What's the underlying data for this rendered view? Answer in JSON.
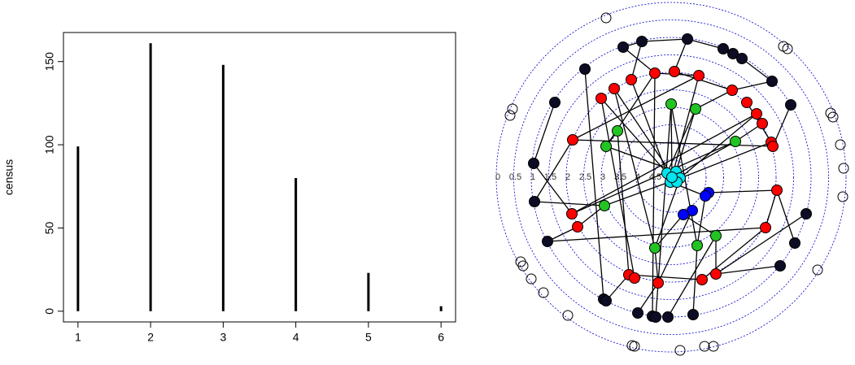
{
  "chart_data": [
    {
      "type": "bar",
      "y_label": "census",
      "x": [
        1,
        2,
        3,
        4,
        5,
        6
      ],
      "values": [
        99,
        161,
        148,
        80,
        23,
        3
      ],
      "color": "#000000",
      "xlim": [
        0.8,
        6.2
      ],
      "xticks": [
        1,
        2,
        3,
        4,
        5,
        6
      ],
      "ylim": [
        -6.44,
        167.44
      ],
      "yticks": [
        0,
        50,
        100,
        150
      ]
    },
    {
      "type": "network",
      "xlim": [
        -2.15,
        2.15
      ],
      "ylim": [
        -2.15,
        2.15
      ],
      "rlim": [
        5,
        0
      ],
      "rticks": [
        0,
        0.5,
        1,
        1.5,
        2,
        2.5,
        3,
        3.5,
        4,
        4.5
      ],
      "ring_color": "#0000cc",
      "groups": [
        {
          "color": "none"
        },
        {
          "color": "#0c0c24"
        },
        {
          "color": "#ff0000"
        },
        {
          "color": "#22c422"
        },
        {
          "color": "#0000ff"
        },
        {
          "color": "#00e5ee"
        }
      ],
      "nodes": [
        {
          "x": -0.8,
          "y": 1.96,
          "group": 0
        },
        {
          "x": 1.38,
          "y": 1.61,
          "group": 0
        },
        {
          "x": 1.43,
          "y": 1.58,
          "group": 0
        },
        {
          "x": -1.95,
          "y": 0.84,
          "group": 0
        },
        {
          "x": -1.98,
          "y": 0.76,
          "group": 0
        },
        {
          "x": 1.96,
          "y": 0.79,
          "group": 0
        },
        {
          "x": 1.99,
          "y": 0.74,
          "group": 0
        },
        {
          "x": 2.08,
          "y": 0.4,
          "group": 0
        },
        {
          "x": 2.12,
          "y": 0.11,
          "group": 0
        },
        {
          "x": 2.11,
          "y": -0.24,
          "group": 0
        },
        {
          "x": 1.8,
          "y": -1.14,
          "group": 0
        },
        {
          "x": -1.85,
          "y": -1.04,
          "group": 0
        },
        {
          "x": -1.82,
          "y": -1.09,
          "group": 0
        },
        {
          "x": -1.72,
          "y": -1.25,
          "group": 0
        },
        {
          "x": -1.57,
          "y": -1.42,
          "group": 0
        },
        {
          "x": -1.27,
          "y": -1.7,
          "group": 0
        },
        {
          "x": -0.48,
          "y": -2.07,
          "group": 0
        },
        {
          "x": -0.45,
          "y": -2.08,
          "group": 0
        },
        {
          "x": 0.11,
          "y": -2.13,
          "group": 0
        },
        {
          "x": 0.41,
          "y": -2.08,
          "group": 0
        },
        {
          "x": 0.52,
          "y": -2.08,
          "group": 0
        },
        {
          "x": -0.36,
          "y": 1.67,
          "group": 1
        },
        {
          "x": 0.2,
          "y": 1.7,
          "group": 1
        },
        {
          "x": 0.64,
          "y": 1.58,
          "group": 1
        },
        {
          "x": 0.76,
          "y": 1.52,
          "group": 1
        },
        {
          "x": -0.59,
          "y": 1.6,
          "group": 1
        },
        {
          "x": 0.87,
          "y": 1.46,
          "group": 1
        },
        {
          "x": -1.06,
          "y": 1.33,
          "group": 1
        },
        {
          "x": 1.24,
          "y": 1.18,
          "group": 1
        },
        {
          "x": -1.43,
          "y": 0.92,
          "group": 1
        },
        {
          "x": 1.47,
          "y": 0.89,
          "group": 1
        },
        {
          "x": -1.69,
          "y": 0.17,
          "group": 1
        },
        {
          "x": -1.68,
          "y": -0.3,
          "group": 1
        },
        {
          "x": 1.66,
          "y": -0.45,
          "group": 1
        },
        {
          "x": -1.52,
          "y": -0.79,
          "group": 1
        },
        {
          "x": 1.52,
          "y": -0.81,
          "group": 1
        },
        {
          "x": 1.34,
          "y": -1.09,
          "group": 1
        },
        {
          "x": -0.83,
          "y": -1.5,
          "group": 1
        },
        {
          "x": -0.8,
          "y": -1.52,
          "group": 1
        },
        {
          "x": -0.41,
          "y": -1.67,
          "group": 1
        },
        {
          "x": -0.23,
          "y": -1.71,
          "group": 1
        },
        {
          "x": -0.19,
          "y": -1.72,
          "group": 1
        },
        {
          "x": -0.04,
          "y": -1.72,
          "group": 1
        },
        {
          "x": 0.27,
          "y": -1.69,
          "group": 1
        },
        {
          "x": -0.2,
          "y": 1.28,
          "group": 2
        },
        {
          "x": 0.04,
          "y": 1.3,
          "group": 2
        },
        {
          "x": 0.34,
          "y": 1.25,
          "group": 2
        },
        {
          "x": -0.49,
          "y": 1.2,
          "group": 2
        },
        {
          "x": 0.75,
          "y": 1.07,
          "group": 2
        },
        {
          "x": -0.7,
          "y": 1.09,
          "group": 2
        },
        {
          "x": -0.86,
          "y": 0.97,
          "group": 2
        },
        {
          "x": 0.93,
          "y": 0.92,
          "group": 2
        },
        {
          "x": 1.05,
          "y": 0.78,
          "group": 2
        },
        {
          "x": 1.12,
          "y": 0.66,
          "group": 2
        },
        {
          "x": -1.21,
          "y": 0.46,
          "group": 2
        },
        {
          "x": 1.23,
          "y": 0.43,
          "group": 2
        },
        {
          "x": 1.25,
          "y": 0.38,
          "group": 2
        },
        {
          "x": 1.3,
          "y": -0.16,
          "group": 2
        },
        {
          "x": -1.22,
          "y": -0.45,
          "group": 2
        },
        {
          "x": -1.15,
          "y": -0.61,
          "group": 2
        },
        {
          "x": 1.16,
          "y": -0.62,
          "group": 2
        },
        {
          "x": 0.55,
          "y": -1.19,
          "group": 2
        },
        {
          "x": 0.38,
          "y": -1.26,
          "group": 2
        },
        {
          "x": -0.52,
          "y": -1.2,
          "group": 2
        },
        {
          "x": -0.45,
          "y": -1.24,
          "group": 2
        },
        {
          "x": -0.16,
          "y": -1.3,
          "group": 2
        },
        {
          "x": 0.0,
          "y": 0.9,
          "group": 3
        },
        {
          "x": 0.3,
          "y": 0.84,
          "group": 3
        },
        {
          "x": -0.66,
          "y": 0.57,
          "group": 3
        },
        {
          "x": -0.8,
          "y": 0.38,
          "group": 3
        },
        {
          "x": 0.79,
          "y": 0.44,
          "group": 3
        },
        {
          "x": -0.82,
          "y": -0.35,
          "group": 3
        },
        {
          "x": 0.55,
          "y": -0.72,
          "group": 3
        },
        {
          "x": 0.32,
          "y": -0.84,
          "group": 3
        },
        {
          "x": -0.2,
          "y": -0.87,
          "group": 3
        },
        {
          "x": 0.46,
          "y": -0.19,
          "group": 4
        },
        {
          "x": 0.42,
          "y": -0.23,
          "group": 4
        },
        {
          "x": 0.26,
          "y": -0.41,
          "group": 4
        },
        {
          "x": 0.15,
          "y": -0.46,
          "group": 4
        },
        {
          "x": -0.05,
          "y": 0.05,
          "group": 5
        },
        {
          "x": 0.06,
          "y": 0.07,
          "group": 5
        },
        {
          "x": 0.11,
          "y": -0.01,
          "group": 5
        },
        {
          "x": -0.01,
          "y": -0.06,
          "group": 5
        },
        {
          "x": 0.07,
          "y": -0.06,
          "group": 5
        },
        {
          "x": 0.01,
          "y": 0.0,
          "group": 5
        }
      ],
      "edges": [
        [
          21,
          25
        ],
        [
          22,
          23
        ],
        [
          23,
          24
        ],
        [
          24,
          26
        ],
        [
          26,
          28
        ],
        [
          22,
          45
        ],
        [
          21,
          47
        ],
        [
          27,
          37
        ],
        [
          29,
          31
        ],
        [
          31,
          58
        ],
        [
          32,
          71
        ],
        [
          32,
          54
        ],
        [
          34,
          59
        ],
        [
          34,
          60
        ],
        [
          33,
          61
        ],
        [
          35,
          57
        ],
        [
          36,
          61
        ],
        [
          30,
          56
        ],
        [
          28,
          48
        ],
        [
          39,
          65
        ],
        [
          40,
          44
        ],
        [
          41,
          66
        ],
        [
          42,
          72
        ],
        [
          43,
          73
        ],
        [
          38,
          63
        ],
        [
          44,
          46
        ],
        [
          45,
          48
        ],
        [
          46,
          84
        ],
        [
          47,
          82
        ],
        [
          49,
          83
        ],
        [
          50,
          79
        ],
        [
          51,
          55
        ],
        [
          52,
          81
        ],
        [
          53,
          70
        ],
        [
          54,
          56
        ],
        [
          55,
          82
        ],
        [
          57,
          60
        ],
        [
          58,
          70
        ],
        [
          59,
          71
        ],
        [
          60,
          62
        ],
        [
          61,
          72
        ],
        [
          62,
          63
        ],
        [
          63,
          68
        ],
        [
          64,
          50
        ],
        [
          65,
          74
        ],
        [
          66,
          73
        ],
        [
          66,
          84
        ],
        [
          67,
          79
        ],
        [
          67,
          80
        ],
        [
          68,
          69
        ],
        [
          69,
          80
        ],
        [
          70,
          84
        ],
        [
          71,
          81
        ],
        [
          72,
          78
        ],
        [
          73,
          76
        ],
        [
          74,
          81
        ],
        [
          75,
          57
        ],
        [
          76,
          82
        ],
        [
          77,
          65
        ],
        [
          78,
          74
        ],
        [
          79,
          84
        ],
        [
          80,
          81
        ],
        [
          82,
          83
        ],
        [
          44,
          69
        ],
        [
          46,
          54
        ],
        [
          48,
          67
        ],
        [
          49,
          74
        ],
        [
          52,
          58
        ],
        [
          21,
          22
        ],
        [
          25,
          44
        ]
      ]
    }
  ]
}
